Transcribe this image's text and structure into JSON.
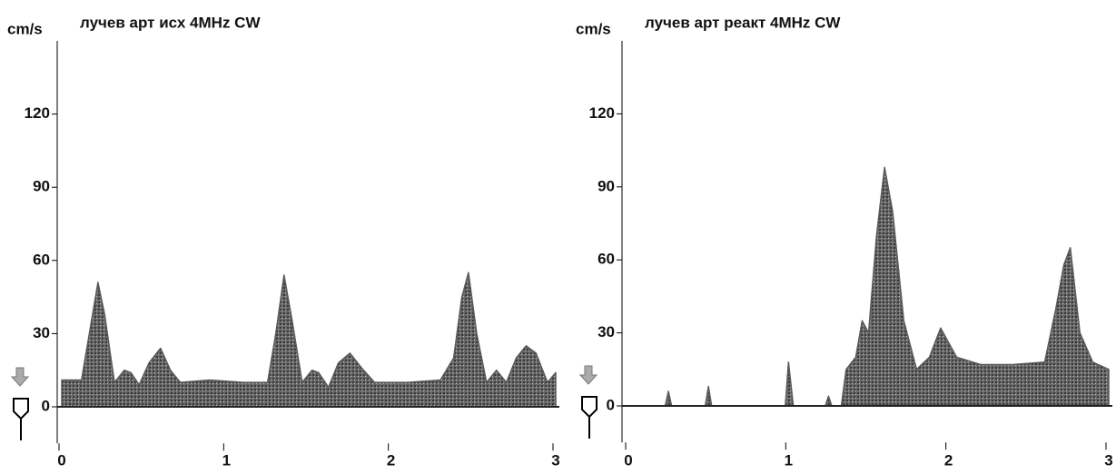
{
  "chart_data": [
    {
      "type": "area",
      "title": "лучев арт исх  4MHz CW",
      "y_label": "cm/s",
      "color": "#5a5a5a",
      "x": [
        0,
        0.12,
        0.18,
        0.22,
        0.26,
        0.32,
        0.38,
        0.42,
        0.47,
        0.53,
        0.6,
        0.66,
        0.72,
        0.9,
        1.1,
        1.25,
        1.3,
        1.35,
        1.4,
        1.46,
        1.52,
        1.56,
        1.62,
        1.68,
        1.75,
        1.82,
        1.9,
        2.1,
        2.3,
        2.38,
        2.43,
        2.47,
        2.52,
        2.58,
        2.64,
        2.7,
        2.76,
        2.82,
        2.88,
        2.95,
        3.0
      ],
      "values": [
        11,
        11,
        35,
        51,
        38,
        10,
        15,
        14,
        9,
        18,
        24,
        15,
        10,
        11,
        10,
        10,
        30,
        54,
        35,
        10,
        15,
        14,
        8,
        18,
        22,
        16,
        10,
        10,
        11,
        20,
        45,
        55,
        30,
        10,
        15,
        10,
        20,
        25,
        22,
        10,
        14
      ],
      "xlim": [
        0,
        3
      ],
      "xticks": [
        0,
        1,
        2,
        3
      ],
      "ylim": [
        -15,
        150
      ],
      "yticks": [
        0,
        30,
        60,
        90,
        120
      ]
    },
    {
      "type": "area",
      "title": "лучев арт реакт  4MHz CW",
      "y_label": "cm/s",
      "color": "#5a5a5a",
      "x": [
        0.23,
        0.25,
        0.27,
        0.35,
        0.48,
        0.5,
        0.52,
        0.75,
        0.98,
        1.0,
        1.03,
        1.1,
        1.23,
        1.25,
        1.27,
        1.3,
        1.33,
        1.36,
        1.42,
        1.46,
        1.5,
        1.55,
        1.6,
        1.65,
        1.72,
        1.8,
        1.88,
        1.95,
        2.05,
        2.2,
        2.4,
        2.6,
        2.67,
        2.72,
        2.76,
        2.82,
        2.9,
        3.0
      ],
      "values": [
        0,
        6,
        0,
        null,
        0,
        8,
        0,
        null,
        0,
        18,
        0,
        null,
        0,
        4,
        0,
        null,
        0,
        15,
        20,
        35,
        30,
        70,
        98,
        80,
        35,
        15,
        20,
        32,
        20,
        17,
        17,
        18,
        40,
        58,
        65,
        30,
        18,
        15
      ],
      "xlim": [
        0,
        3
      ],
      "xticks": [
        0,
        1,
        2,
        3
      ],
      "ylim": [
        -15,
        150
      ],
      "yticks": [
        0,
        30,
        60,
        90,
        120
      ]
    }
  ]
}
